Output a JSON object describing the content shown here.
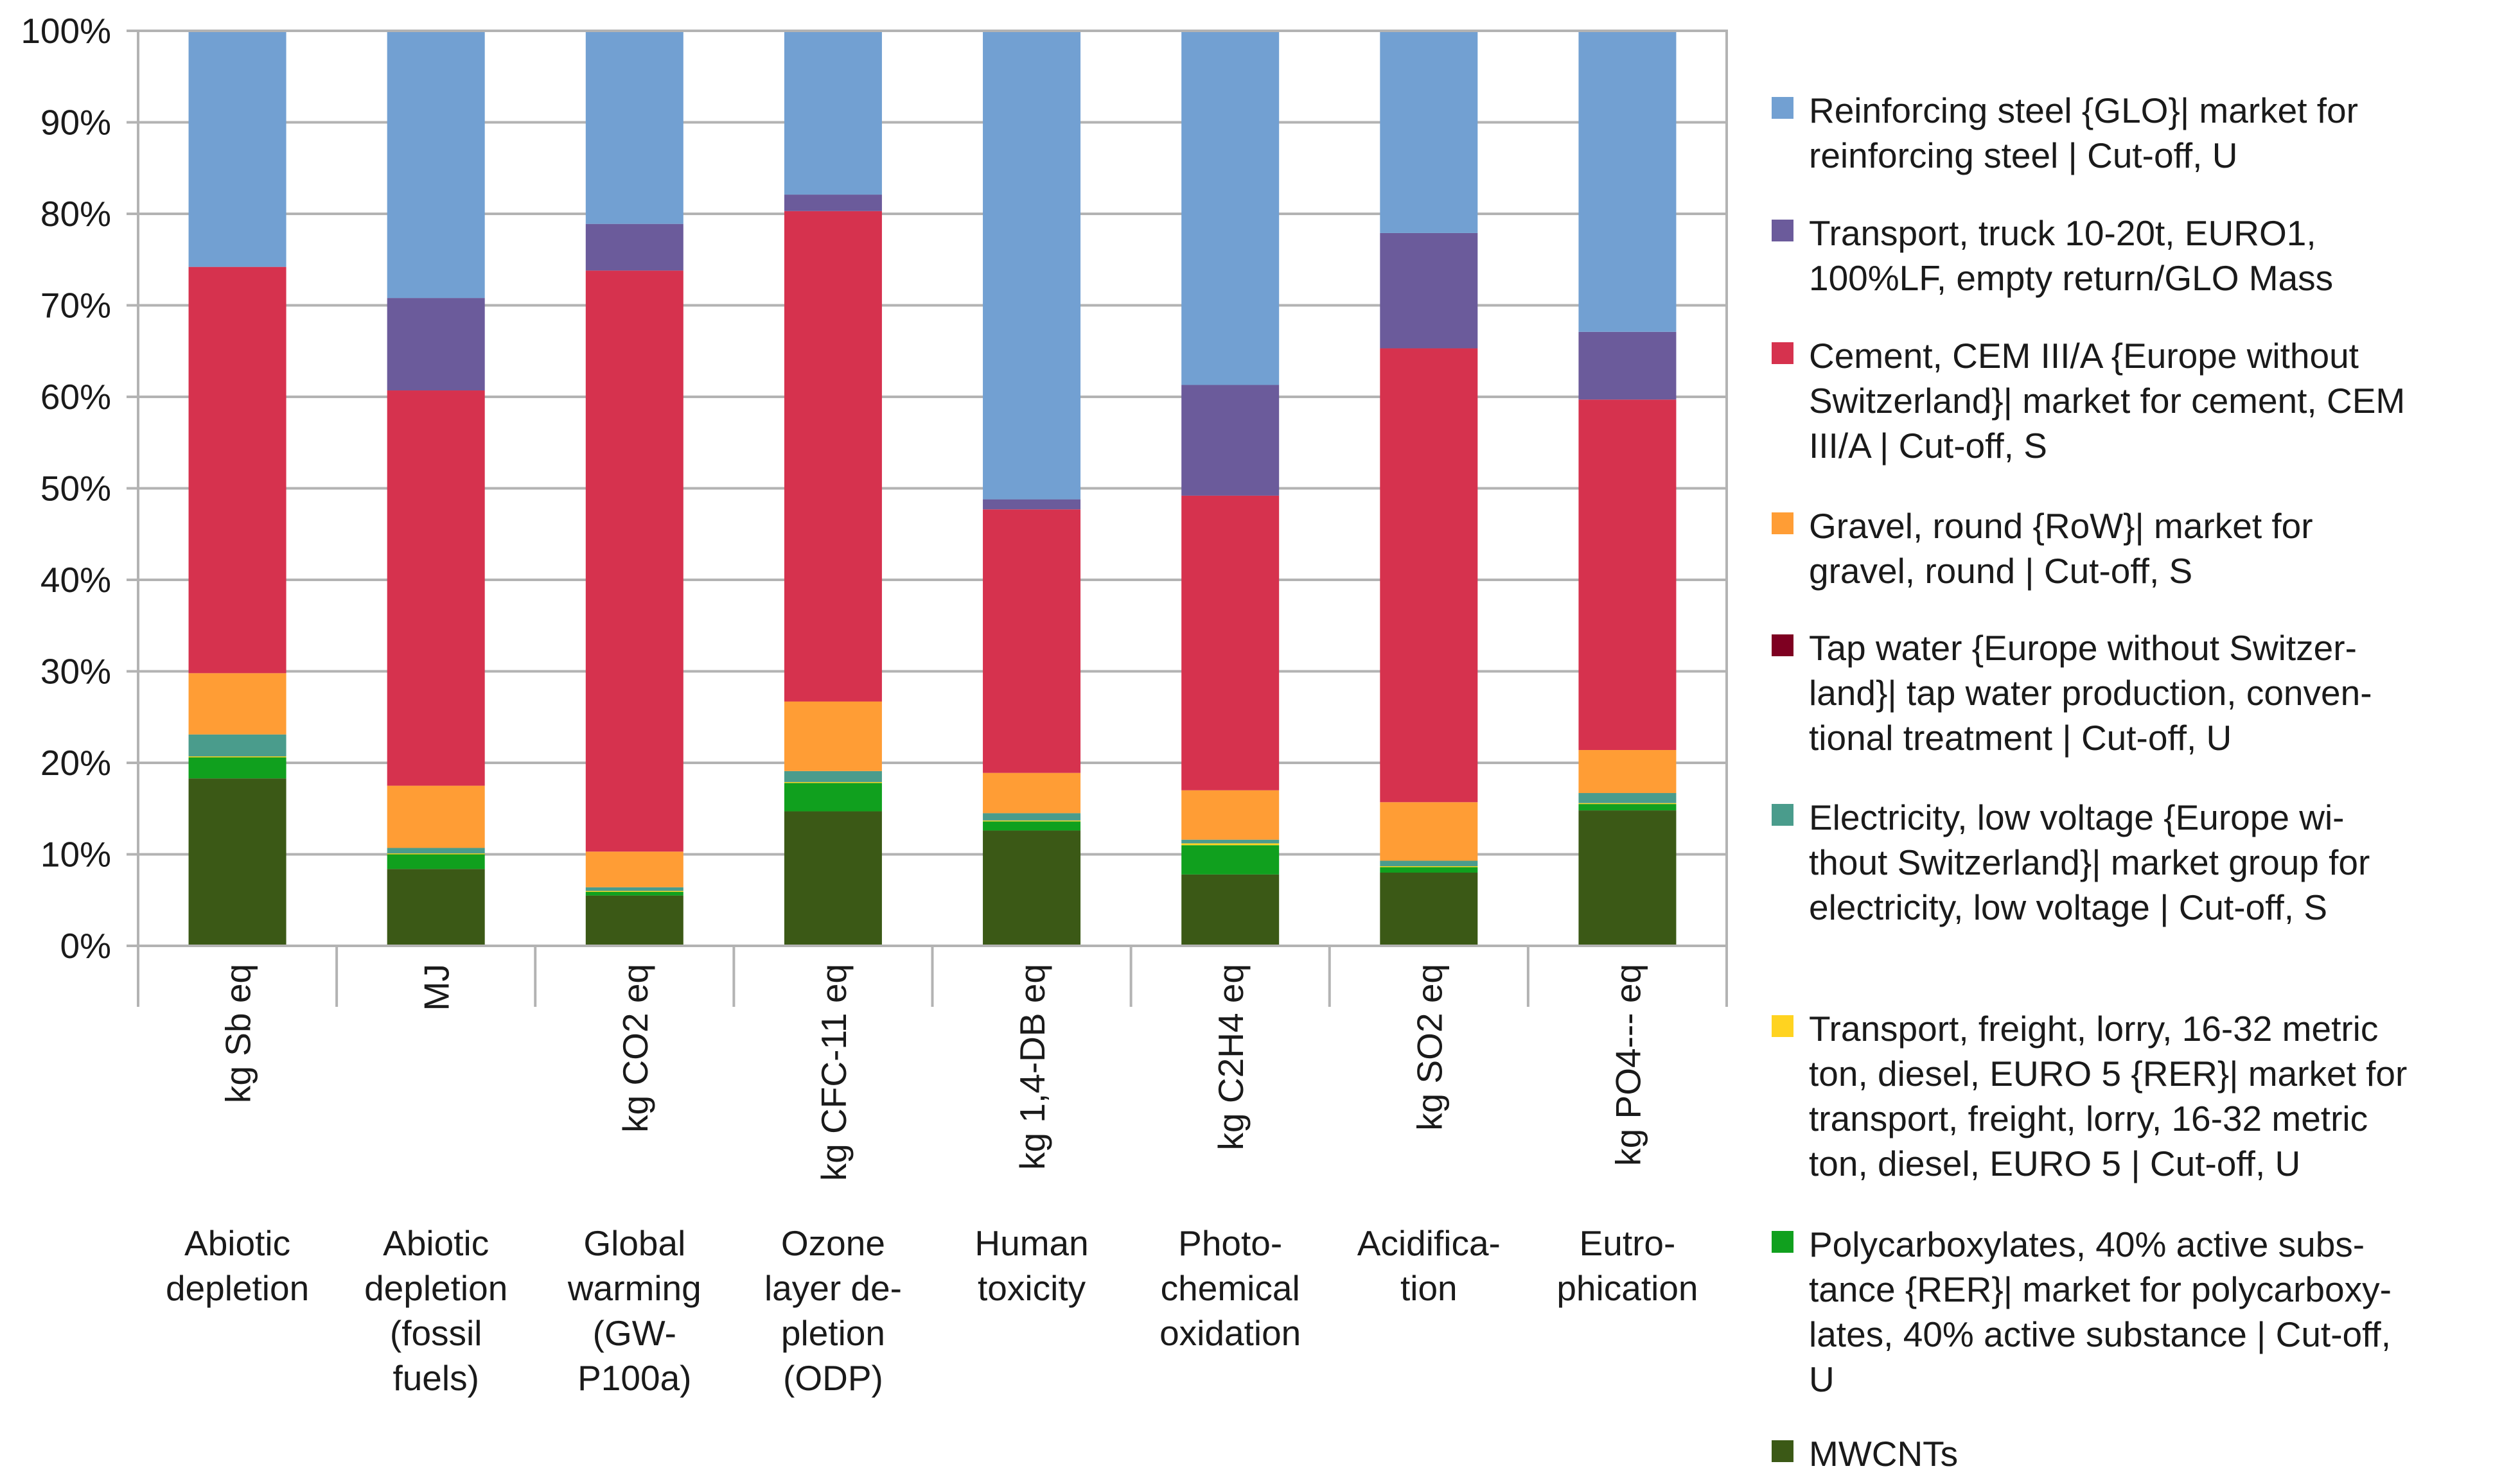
{
  "chart_data": {
    "type": "bar",
    "stacked": true,
    "normalized": true,
    "title": "",
    "xlabel": "",
    "ylabel": "",
    "ylim": [
      0,
      100
    ],
    "yticks": [
      "0%",
      "10%",
      "20%",
      "30%",
      "40%",
      "50%",
      "60%",
      "70%",
      "80%",
      "90%",
      "100%"
    ],
    "legend_position": "right",
    "grid": true,
    "categories": [
      {
        "unit": "kg Sb eq",
        "name": "Abiotic\ndepletion"
      },
      {
        "unit": "MJ",
        "name": "Abiotic\ndepletion\n(fossil\nfuels)"
      },
      {
        "unit": "kg CO2 eq",
        "name": "Global\nwarming\n(GW-\nP100a)"
      },
      {
        "unit": "kg CFC-11 eq",
        "name": "Ozone\nlayer de-\npletion\n(ODP)"
      },
      {
        "unit": "kg 1,4-DB eq",
        "name": "Human\ntoxicity"
      },
      {
        "unit": "kg C2H4 eq",
        "name": "Photo-\nchemical\noxidation"
      },
      {
        "unit": "kg SO2 eq",
        "name": "Acidifica-\ntion"
      },
      {
        "unit": "kg PO4--- eq",
        "name": "Eutro-\nphication"
      }
    ],
    "series": [
      {
        "name": "MWCNTs",
        "color": "#3b5916",
        "values": [
          18.3,
          8.4,
          5.5,
          14.7,
          12.6,
          7.8,
          8.0,
          14.8
        ]
      },
      {
        "name": "Polycarboxylates, 40% active subs-\ntance {RER}| market for polycarboxy-\nlates, 40% active substance | Cut-off,\nU",
        "color": "#10a01e",
        "values": [
          2.3,
          1.6,
          0.4,
          3.1,
          1.0,
          3.2,
          0.6,
          0.7
        ]
      },
      {
        "name": "Transport, freight, lorry, 16-32 metric\nton, diesel, EURO 5 {RER}| market for\ntransport, freight, lorry, 16-32 metric\nton, diesel, EURO 5 | Cut-off, U",
        "color": "#ffd320",
        "values": [
          0.1,
          0.1,
          0.1,
          0.1,
          0.1,
          0.2,
          0.1,
          0.1
        ]
      },
      {
        "name": "Electricity, low voltage {Europe wi-\nthout Switzerland}| market group for\nelectricity, low voltage | Cut-off, S",
        "color": "#4a9c8c",
        "values": [
          2.4,
          0.6,
          0.4,
          1.2,
          0.8,
          0.4,
          0.6,
          1.1
        ]
      },
      {
        "name": "Tap water {Europe without Switzer-\nland}| tap water production, conven-\ntional treatment | Cut-off, U",
        "color": "#7e0021",
        "values": [
          0.0,
          0.0,
          0.0,
          0.0,
          0.0,
          0.0,
          0.0,
          0.0
        ]
      },
      {
        "name": "Gravel, round {RoW}| market for\ngravel, round | Cut-off, S",
        "color": "#ff9d35",
        "values": [
          6.7,
          6.8,
          3.9,
          7.6,
          4.4,
          5.4,
          6.4,
          4.7
        ]
      },
      {
        "name": "Cement, CEM III/A {Europe without\nSwitzerland}| market for cement, CEM\nIII/A | Cut-off, S",
        "color": "#d6324e",
        "values": [
          44.4,
          43.2,
          63.5,
          53.6,
          28.8,
          32.2,
          49.6,
          38.3
        ]
      },
      {
        "name": "Transport, truck 10-20t, EURO1,\n100%LF, empty return/GLO Mass",
        "color": "#6b5b9b",
        "values": [
          0.0,
          10.1,
          5.1,
          1.8,
          1.1,
          12.1,
          12.6,
          7.4
        ]
      },
      {
        "name": "Reinforcing steel {GLO}| market for\nreinforcing steel | Cut-off, U",
        "color": "#72a0d2",
        "values": [
          25.8,
          29.2,
          21.1,
          17.9,
          51.2,
          38.7,
          22.1,
          32.9
        ]
      }
    ]
  }
}
